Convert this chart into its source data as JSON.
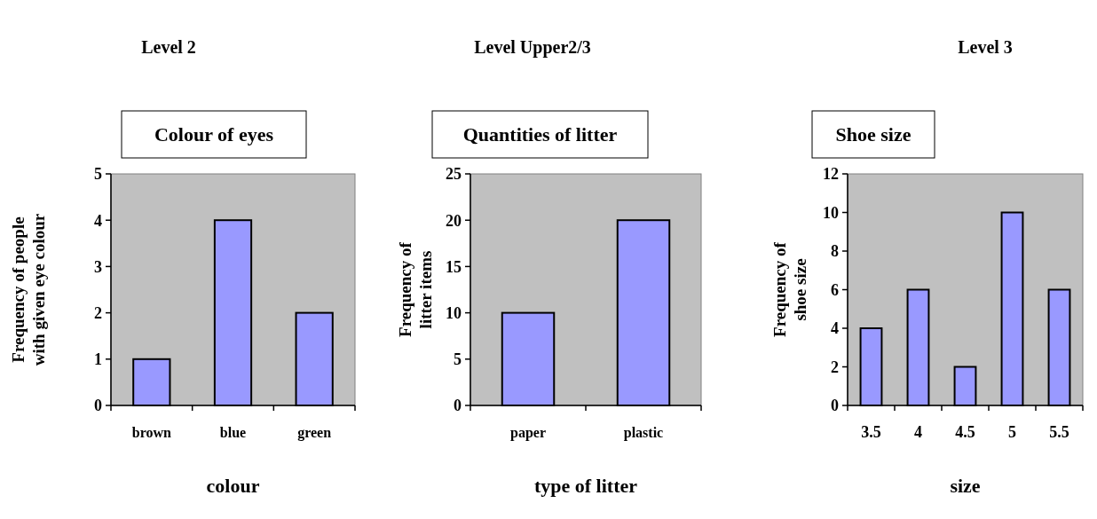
{
  "chart_data": [
    {
      "type": "bar",
      "subtitle": "Level 2",
      "title": "Colour of eyes",
      "xlabel": "colour",
      "ylabel": "Frequency of people\nwith given eye colour",
      "categories": [
        "brown",
        "blue",
        "green"
      ],
      "values": [
        1,
        4,
        2
      ],
      "color": "#9999ff",
      "ylim": [
        0,
        5
      ],
      "yticks": [
        0,
        1,
        2,
        3,
        4,
        5
      ]
    },
    {
      "type": "bar",
      "subtitle": "Level Upper2/3",
      "title": "Quantities of litter",
      "xlabel": "type of litter",
      "ylabel": "Frequency of\nlitter items",
      "categories": [
        "paper",
        "plastic"
      ],
      "values": [
        10,
        20
      ],
      "color": "#9999ff",
      "ylim": [
        0,
        25
      ],
      "yticks": [
        0,
        5,
        10,
        15,
        20,
        25
      ]
    },
    {
      "type": "bar",
      "subtitle": "Level 3",
      "title": "Shoe size",
      "xlabel": "size",
      "ylabel": "Frequency of\nshoe size",
      "categories": [
        "3.5",
        "4",
        "4.5",
        "5",
        "5.5"
      ],
      "values": [
        4,
        6,
        2,
        10,
        6
      ],
      "color": "#9999ff",
      "ylim": [
        0,
        12
      ],
      "yticks": [
        0,
        2,
        4,
        6,
        8,
        10,
        12
      ]
    }
  ]
}
